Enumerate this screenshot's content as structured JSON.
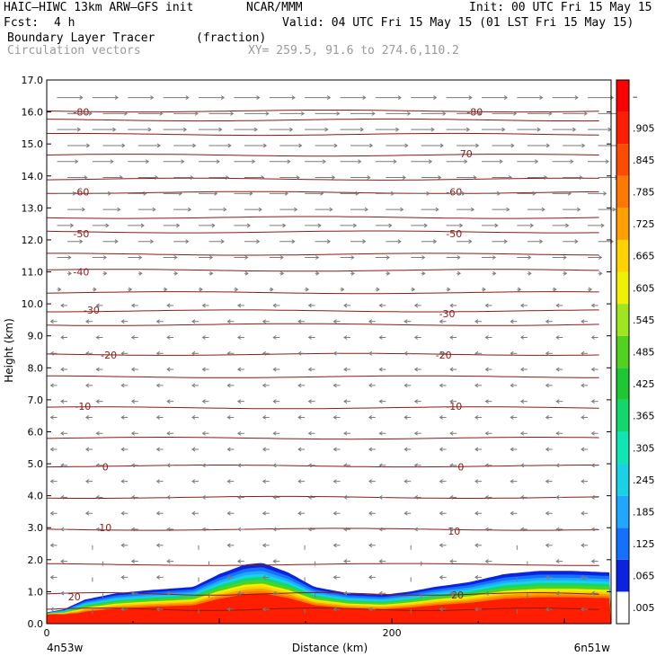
{
  "header": {
    "model_title": "HAIC–HIWC 13km ARW–GFS init",
    "org": "NCAR/MMM",
    "init_text": "Init: 00 UTC Fri 15 May 15",
    "fcst_label": "Fcst:",
    "fcst_value": "4 h",
    "valid_text": "Valid: 04 UTC Fri 15 May 15 (01 LST Fri 15 May 15)",
    "field_name": "Boundary Layer Tracer",
    "field_units": "(fraction)",
    "vector_label": "Circulation vectors",
    "xy_text": "XY= 259.5, 91.6 to 274.6,110.2"
  },
  "colors": {
    "contour": "#8b1a1a",
    "vectors": "#7a7a7a",
    "vector_label": "#9a9a9a",
    "xy_text": "#9a9a9a"
  },
  "chart_data": {
    "type": "heatmap",
    "title": "Boundary Layer Tracer (fraction) with circulation vectors and temperature contours",
    "xlabel": "Distance (km)",
    "ylabel": "Height (km)",
    "xlim": [
      0,
      327
    ],
    "ylim": [
      0,
      17
    ],
    "x_ticks": [
      0,
      200
    ],
    "y_ticks": [
      "0.0",
      "1.0",
      "2.0",
      "3.0",
      "4.0",
      "5.0",
      "6.0",
      "7.0",
      "8.0",
      "9.0",
      "10.0",
      "11.0",
      "12.0",
      "13.0",
      "14.0",
      "15.0",
      "16.0",
      "17.0"
    ],
    "x_endpoints": {
      "left": "4n53w",
      "right": "6n51w"
    },
    "colorbar": {
      "labels": [
        ".005",
        ".065",
        ".125",
        ".185",
        ".245",
        ".305",
        ".365",
        ".425",
        ".485",
        ".545",
        ".605",
        ".665",
        ".725",
        ".785",
        ".845",
        ".905",
        "–"
      ],
      "colors": [
        "#ffffff",
        "#0b23e0",
        "#1470ff",
        "#1ea8ff",
        "#18d2e6",
        "#10e6b4",
        "#12d86c",
        "#1ec832",
        "#50d21e",
        "#a0e61e",
        "#f0f000",
        "#ffd200",
        "#ffa000",
        "#ff7800",
        "#ff4b00",
        "#ff1e00",
        "#ff0000"
      ]
    },
    "tracer_envelope": {
      "x_km": [
        0,
        10,
        22,
        40,
        60,
        85,
        100,
        115,
        125,
        140,
        155,
        175,
        195,
        210,
        225,
        245,
        265,
        285,
        305,
        327
      ],
      "top_km": [
        0.35,
        0.45,
        0.75,
        0.95,
        1.05,
        1.15,
        1.55,
        1.85,
        1.9,
        1.6,
        1.15,
        0.95,
        0.9,
        1.0,
        1.15,
        1.3,
        1.55,
        1.65,
        1.65,
        1.6
      ]
    },
    "contour_labels": [
      {
        "x": 20,
        "y": 16.0,
        "text": "-80"
      },
      {
        "x": 248,
        "y": 16.0,
        "text": "-80"
      },
      {
        "x": 242,
        "y": 14.7,
        "text": "-70"
      },
      {
        "x": 20,
        "y": 13.5,
        "text": "-60"
      },
      {
        "x": 236,
        "y": 13.5,
        "text": "-60"
      },
      {
        "x": 20,
        "y": 12.2,
        "text": "-50"
      },
      {
        "x": 236,
        "y": 12.2,
        "text": "-50"
      },
      {
        "x": 20,
        "y": 11.0,
        "text": "-40"
      },
      {
        "x": 26,
        "y": 9.8,
        "text": "-30"
      },
      {
        "x": 232,
        "y": 9.7,
        "text": "-30"
      },
      {
        "x": 36,
        "y": 8.4,
        "text": "-20"
      },
      {
        "x": 230,
        "y": 8.4,
        "text": "-20"
      },
      {
        "x": 21,
        "y": 6.8,
        "text": "-10"
      },
      {
        "x": 236,
        "y": 6.8,
        "text": "-10"
      },
      {
        "x": 34,
        "y": 4.9,
        "text": "0"
      },
      {
        "x": 240,
        "y": 4.9,
        "text": "0"
      },
      {
        "x": 34,
        "y": 3.0,
        "text": "10"
      },
      {
        "x": 236,
        "y": 2.9,
        "text": "10"
      },
      {
        "x": 16,
        "y": 0.85,
        "text": "20"
      },
      {
        "x": 238,
        "y": 0.9,
        "text": "20"
      }
    ]
  }
}
